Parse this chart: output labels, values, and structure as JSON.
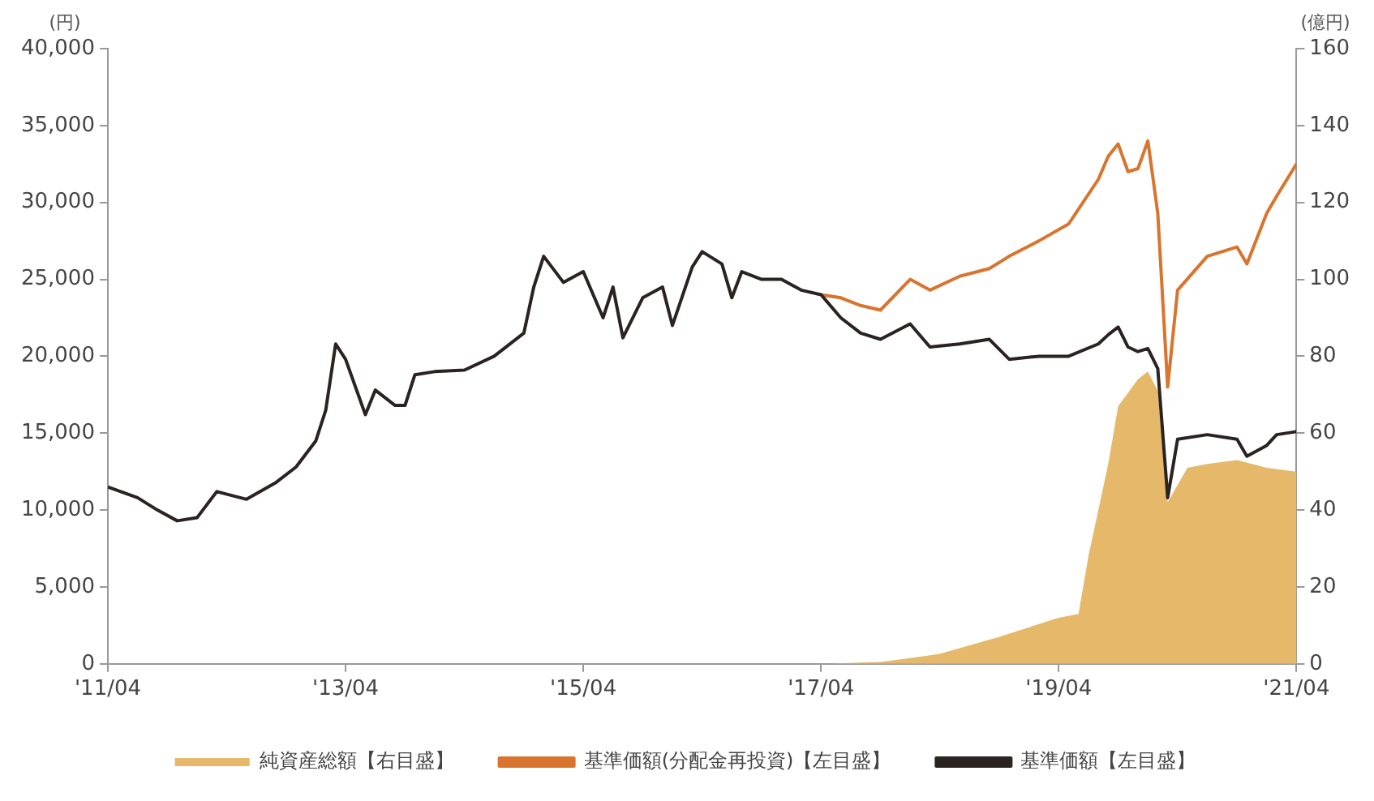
{
  "chart_data": {
    "type": "line",
    "ylabel": "(円)",
    "y2label": "(億円)",
    "xlim": [
      "2011-04",
      "2021-04"
    ],
    "xticks": [
      {
        "value": "2011-04",
        "label": "'11/04"
      },
      {
        "value": "2013-04",
        "label": "'13/04"
      },
      {
        "value": "2015-04",
        "label": "'15/04"
      },
      {
        "value": "2017-04",
        "label": "'17/04"
      },
      {
        "value": "2019-04",
        "label": "'19/04"
      },
      {
        "value": "2021-04",
        "label": "'21/04"
      }
    ],
    "ylim": [
      0,
      40000
    ],
    "yticks": [
      0,
      {
        "value": 5000,
        "label": "5,000"
      },
      {
        "value": 10000,
        "label": "10,000"
      },
      {
        "value": 15000,
        "label": "15,000"
      },
      {
        "value": 20000,
        "label": "20,000"
      },
      {
        "value": 25000,
        "label": "25,000"
      },
      {
        "value": 30000,
        "label": "30,000"
      },
      {
        "value": 35000,
        "label": "35,000"
      },
      {
        "value": 40000,
        "label": "40,000"
      }
    ],
    "y2lim": [
      0,
      160
    ],
    "y2ticks": [
      0,
      20,
      40,
      60,
      80,
      100,
      120,
      140,
      160
    ],
    "grid": false,
    "legend": "bottom",
    "marker": "none",
    "line_style": "solid",
    "x": [
      "2011-04",
      "2011-07",
      "2011-09",
      "2011-11",
      "2012-01",
      "2012-03",
      "2012-06",
      "2012-09",
      "2012-11",
      "2013-01",
      "2013-02",
      "2013-03",
      "2013-04",
      "2013-06",
      "2013-07",
      "2013-09",
      "2013-10",
      "2013-11",
      "2014-01",
      "2014-04",
      "2014-07",
      "2014-09",
      "2014-10",
      "2014-11",
      "2014-12",
      "2015-02",
      "2015-04",
      "2015-06",
      "2015-07",
      "2015-08",
      "2015-10",
      "2015-12",
      "2016-01",
      "2016-03",
      "2016-04",
      "2016-06",
      "2016-07",
      "2016-08",
      "2016-10",
      "2016-12",
      "2017-02",
      "2017-04",
      "2017-06",
      "2017-08",
      "2017-10",
      "2018-01",
      "2018-03",
      "2018-06",
      "2018-09",
      "2018-11",
      "2019-02",
      "2019-05",
      "2019-08",
      "2019-09",
      "2019-10",
      "2019-11",
      "2019-12",
      "2020-01",
      "2020-02",
      "2020-03",
      "2020-04",
      "2020-07",
      "2020-10",
      "2020-11",
      "2021-01",
      "2021-02",
      "2021-04"
    ],
    "series": [
      {
        "name": "純資産総額【右目盛】",
        "type": "area",
        "axis": "y2",
        "color": "#e5b86a",
        "x": [
          "2011-04",
          "2017-04",
          "2017-10",
          "2018-01",
          "2018-04",
          "2018-10",
          "2019-04",
          "2019-06",
          "2019-07",
          "2019-09",
          "2019-10",
          "2019-12",
          "2020-01",
          "2020-02",
          "2020-03",
          "2020-05",
          "2020-07",
          "2020-10",
          "2021-01",
          "2021-04"
        ],
        "values": [
          0,
          0,
          0.5,
          1.5,
          2.6,
          7,
          12,
          13,
          28,
          52,
          67,
          74,
          76,
          71,
          42,
          51,
          52,
          53,
          51,
          50
        ]
      },
      {
        "name": "基準価額(分配金再投資)【左目盛】",
        "type": "line",
        "color": "#d9742e",
        "x": [
          "2017-04",
          "2017-06",
          "2017-08",
          "2017-10",
          "2018-01",
          "2018-03",
          "2018-06",
          "2018-09",
          "2018-11",
          "2019-02",
          "2019-05",
          "2019-08",
          "2019-09",
          "2019-10",
          "2019-11",
          "2019-12",
          "2020-01",
          "2020-02",
          "2020-03",
          "2020-04",
          "2020-07",
          "2020-10",
          "2020-11",
          "2021-01",
          "2021-02",
          "2021-04"
        ],
        "values": [
          24000,
          23800,
          23300,
          23000,
          25000,
          24300,
          25200,
          25700,
          26500,
          27500,
          28600,
          31500,
          33000,
          33800,
          32000,
          32200,
          34000,
          29300,
          18000,
          24300,
          26500,
          27100,
          26000,
          29300,
          30400,
          32500
        ]
      },
      {
        "name": "基準価額【左目盛】",
        "type": "line",
        "color": "#2b2222",
        "values": [
          11500,
          10800,
          10000,
          9300,
          9500,
          11200,
          10700,
          11800,
          12800,
          14500,
          16500,
          20800,
          19800,
          16200,
          17800,
          16800,
          16800,
          18800,
          19000,
          19100,
          20000,
          21000,
          21500,
          24500,
          26500,
          24800,
          25500,
          22500,
          24500,
          21200,
          23800,
          24500,
          22000,
          25800,
          26800,
          26000,
          23800,
          25500,
          25000,
          25000,
          24300,
          24000,
          22500,
          21500,
          21100,
          22100,
          20600,
          20800,
          21100,
          19800,
          20000,
          20000,
          20800,
          21400,
          21900,
          20600,
          20300,
          20500,
          19200,
          10800,
          14600,
          14900,
          14600,
          13500,
          14200,
          14900,
          15100
        ]
      }
    ]
  }
}
